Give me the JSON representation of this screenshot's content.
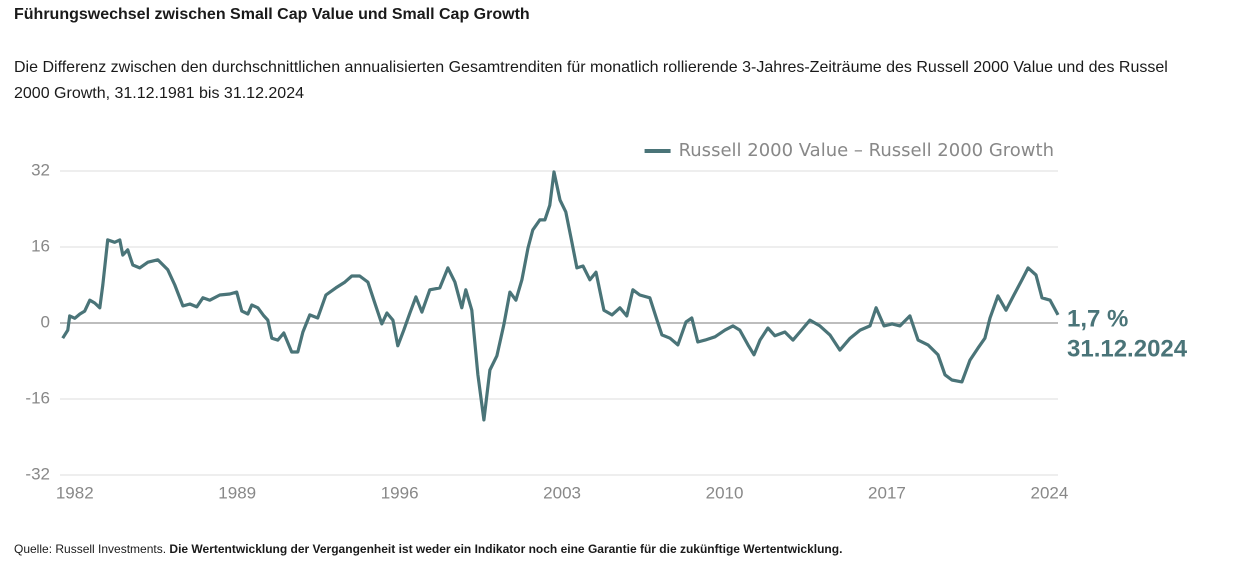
{
  "chart_data": {
    "type": "line",
    "title": "Führungswechsel zwischen Small Cap Value und Small Cap Growth",
    "subtitle": "Die Differenz zwischen den durchschnittlichen annualisierten Gesamtrenditen für monatlich rollierende 3-Jahres-Zeiträume des Russell 2000 Value und des Russel 2000 Growth, 31.12.1981 bis 31.12.2024",
    "source": "Quelle: Russell Investments.",
    "disclaimer": "Die Wertentwicklung der Vergangenheit ist weder ein Indikator noch eine Garantie für die zukünftige Wertentwicklung.",
    "annotations": [
      "1,7 %",
      "31.12.2024"
    ],
    "x": [
      1981.48,
      1981.7,
      1981.78,
      1982.0,
      1982.22,
      1982.43,
      1982.65,
      1982.86,
      1983.08,
      1983.21,
      1983.42,
      1983.72,
      1983.94,
      1984.07,
      1984.28,
      1984.5,
      1984.8,
      1985.15,
      1985.58,
      1986.01,
      1986.31,
      1986.66,
      1986.96,
      1987.26,
      1987.52,
      1987.82,
      1988.25,
      1988.68,
      1988.98,
      1989.2,
      1989.46,
      1989.63,
      1989.89,
      1990.15,
      1990.32,
      1990.49,
      1990.75,
      1991.01,
      1991.35,
      1991.61,
      1991.83,
      1992.13,
      1992.47,
      1992.82,
      1993.25,
      1993.64,
      1993.94,
      1994.28,
      1994.63,
      1994.93,
      1995.23,
      1995.45,
      1995.71,
      1995.92,
      1996.18,
      1996.44,
      1996.7,
      1996.96,
      1997.3,
      1997.73,
      1998.08,
      1998.38,
      1998.68,
      1998.85,
      1999.11,
      1999.37,
      1999.63,
      1999.89,
      2000.19,
      2000.49,
      2000.75,
      2001.01,
      2001.27,
      2001.53,
      2001.74,
      2002.04,
      2002.26,
      2002.47,
      2002.65,
      2002.91,
      2003.16,
      2003.42,
      2003.64,
      2003.9,
      2004.2,
      2004.46,
      2004.8,
      2005.15,
      2005.49,
      2005.79,
      2006.05,
      2006.35,
      2006.78,
      2007.09,
      2007.3,
      2007.65,
      2007.99,
      2008.34,
      2008.59,
      2008.85,
      2009.16,
      2009.59,
      2010.02,
      2010.36,
      2010.66,
      2011.01,
      2011.27,
      2011.53,
      2011.87,
      2012.17,
      2012.6,
      2012.95,
      2013.25,
      2013.68,
      2014.11,
      2014.54,
      2014.97,
      2015.41,
      2015.84,
      2016.27,
      2016.53,
      2016.87,
      2017.22,
      2017.56,
      2017.99,
      2018.34,
      2018.77,
      2019.2,
      2019.5,
      2019.8,
      2020.23,
      2020.58,
      2020.92,
      2021.22,
      2021.44,
      2021.78,
      2022.13,
      2022.47,
      2022.82,
      2023.08,
      2023.42,
      2023.68,
      2024.03,
      2024.37
    ],
    "series": [
      {
        "name": "Russell 2000 Value – Russell 2000 Growth",
        "color": "#4a7478",
        "values": [
          -3.2,
          -1.5,
          1.5,
          1.0,
          1.9,
          2.5,
          4.8,
          4.2,
          3.2,
          8,
          17.5,
          17,
          17.5,
          14.3,
          15.4,
          12.2,
          11.6,
          12.8,
          13.3,
          11.2,
          8,
          3.6,
          4.0,
          3.4,
          5.3,
          4.8,
          5.9,
          6.1,
          6.5,
          2.5,
          1.9,
          3.8,
          3.2,
          1.5,
          0.6,
          -3.2,
          -3.6,
          -2.1,
          -6.1,
          -6.1,
          -1.9,
          1.7,
          1.05,
          5.9,
          7.4,
          8.6,
          9.9,
          9.9,
          8.6,
          4.2,
          -0.2,
          2.1,
          0.6,
          -4.8,
          -1.5,
          2.1,
          5.5,
          2.3,
          7,
          7.4,
          11.6,
          8.6,
          3.2,
          7,
          2.7,
          -10.9,
          -20.4,
          -9.9,
          -6.9,
          -0.4,
          6.5,
          4.8,
          9.1,
          15.8,
          19.6,
          21.7,
          21.7,
          24.8,
          31.8,
          25.9,
          23.4,
          17.1,
          11.6,
          12,
          9.1,
          10.7,
          2.7,
          1.7,
          3.2,
          1.5,
          7,
          5.9,
          5.3,
          0.6,
          -2.5,
          -3.2,
          -4.6,
          0.2,
          1.05,
          -4,
          -3.6,
          -2.9,
          -1.5,
          -0.6,
          -1.5,
          -4.6,
          -6.7,
          -3.6,
          -1.05,
          -2.7,
          -1.9,
          -3.6,
          -1.9,
          0.6,
          -0.6,
          -2.5,
          -5.7,
          -3.2,
          -1.5,
          -0.6,
          3.2,
          -0.6,
          -0.2,
          -0.6,
          1.5,
          -3.6,
          -4.6,
          -6.7,
          -10.9,
          -12,
          -12.4,
          -7.8,
          -5.3,
          -3.2,
          1.05,
          5.7,
          2.7,
          5.9,
          9.1,
          11.6,
          10.1,
          5.3,
          4.8,
          1.7
        ]
      }
    ],
    "xlim": [
      1981.45,
      2024.37
    ],
    "xticks": [
      1982,
      1989,
      1996,
      2003,
      2010,
      2017,
      2024
    ],
    "ylim": [
      -32,
      32
    ],
    "yticks": [
      32,
      16,
      0,
      -16,
      -32
    ],
    "grid": true,
    "legend": "top-right"
  }
}
